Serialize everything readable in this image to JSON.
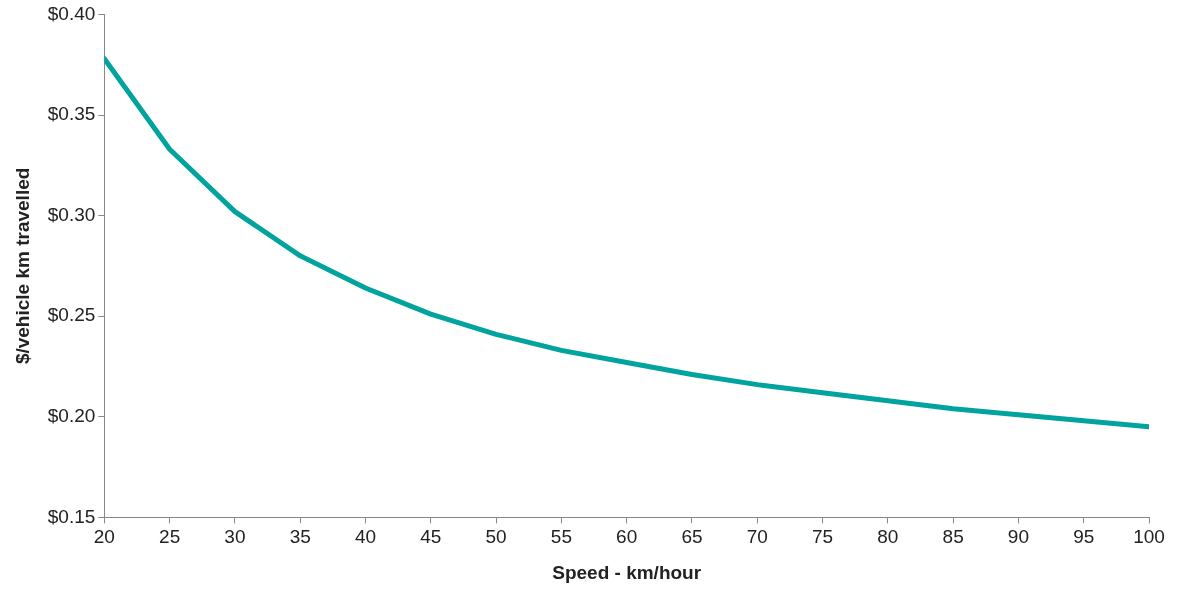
{
  "chart_data": {
    "type": "line",
    "xlabel": "Speed - km/hour",
    "ylabel": "$/vehicle km travelled",
    "x": [
      20,
      25,
      30,
      35,
      40,
      45,
      50,
      55,
      60,
      65,
      70,
      75,
      80,
      85,
      90,
      95,
      100
    ],
    "series": [
      {
        "color": "#00a39d",
        "values": [
          0.378,
          0.333,
          0.302,
          0.28,
          0.264,
          0.251,
          0.241,
          0.233,
          0.227,
          0.221,
          0.216,
          0.212,
          0.208,
          0.204,
          0.201,
          0.198,
          0.195
        ]
      }
    ],
    "xlim": [
      20,
      100
    ],
    "xticks": [
      20,
      25,
      30,
      35,
      40,
      45,
      50,
      55,
      60,
      65,
      70,
      75,
      80,
      85,
      90,
      95,
      100
    ],
    "ylim": [
      0.15,
      0.4
    ],
    "yticks": [
      {
        "value": 0.15,
        "label": "$0.15"
      },
      {
        "value": 0.2,
        "label": "$0.20"
      },
      {
        "value": 0.25,
        "label": "$0.25"
      },
      {
        "value": 0.3,
        "label": "$0.30"
      },
      {
        "value": 0.35,
        "label": "$0.35"
      },
      {
        "value": 0.4,
        "label": "$0.40"
      }
    ],
    "grid": false,
    "legend": false,
    "marker": "none",
    "line_style": "solid"
  }
}
